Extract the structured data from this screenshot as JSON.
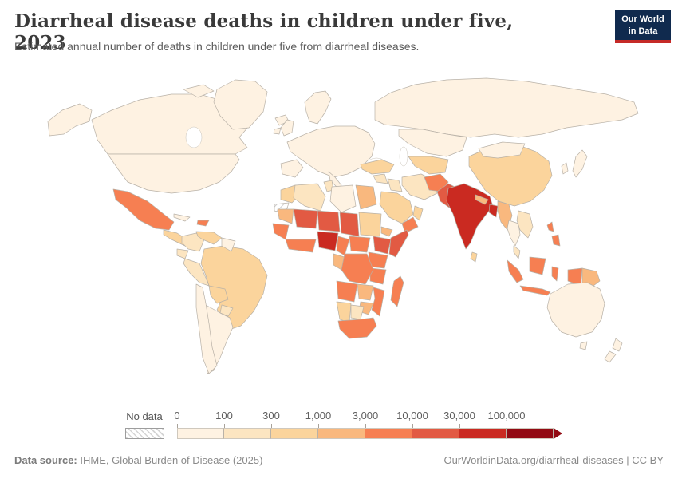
{
  "header": {
    "title": "Diarrheal disease deaths in children under five, 2023",
    "subtitle": "Estimated annual number of deaths in children under five from diarrheal diseases."
  },
  "logo": {
    "line1": "Our World",
    "line2": "in Data",
    "bg_color": "#102a4e",
    "accent_color": "#c52a28"
  },
  "chart_data": {
    "type": "choropleth",
    "title": "Diarrheal disease deaths in children under five, 2023",
    "unit": "estimated annual deaths in children under five",
    "legend": {
      "no_data_label": "No data",
      "tick_labels": [
        "0",
        "100",
        "300",
        "1,000",
        "3,000",
        "10,000",
        "30,000",
        "100,000"
      ],
      "bin_ranges": [
        "0–100",
        "100–300",
        "300–1,000",
        "1,000–3,000",
        "3,000–10,000",
        "10,000–30,000",
        "30,000–100,000",
        "100,000+"
      ],
      "bin_colors": [
        "#fef2e2",
        "#fce5c1",
        "#fbd49c",
        "#f9b87e",
        "#f67f52",
        "#e25a43",
        "#ca2a21",
        "#920a13"
      ],
      "no_data_pattern": "diagonal-hatch"
    },
    "regions": {
      "canada": 0,
      "united-states": 0,
      "greenland": 0,
      "iceland": 0,
      "mexico": 4,
      "central-america": 2,
      "cuba": 0,
      "hispaniola": 4,
      "colombia": 1,
      "venezuela": 2,
      "guyanas": 0,
      "ecuador": 1,
      "peru": 1,
      "brazil": 2,
      "bolivia": 2,
      "paraguay": 1,
      "chile": 0,
      "argentina": 0,
      "united-kingdom": 0,
      "ireland": 0,
      "scandinavia": 0,
      "europe-mainland": 0,
      "iberia": 0,
      "italy": 0,
      "russia": 0,
      "kazakhstan": 0,
      "central-asia": 2,
      "china": 2,
      "mongolia": 0,
      "japan": 0,
      "korea": 0,
      "turkey": 2,
      "levant": 1,
      "iraq": 1,
      "iran": 1,
      "saudi-arabia": 2,
      "yemen": 4,
      "oman": 2,
      "morocco": 2,
      "western-sahara": null,
      "algeria": 1,
      "tunisia": 1,
      "libya": 0,
      "egypt": 3,
      "mauritania": 3,
      "mali": 5,
      "niger": 5,
      "chad": 5,
      "sudan": 2,
      "eritrea": 3,
      "senegal-guinea": 4,
      "west-african-coast": 4,
      "nigeria": 6,
      "cameroon": 4,
      "central-african-republic": 4,
      "ethiopia": 5,
      "somalia": 5,
      "gabon-congo": 3,
      "dr-congo": 4,
      "uganda-kenya": 4,
      "tanzania": 4,
      "angola": 4,
      "zambia": 3,
      "mozambique": 4,
      "zimbabwe": 3,
      "namibia": 2,
      "botswana": 1,
      "south-africa": 4,
      "madagascar": 4,
      "afghanistan": 4,
      "pakistan": 5,
      "india": 6,
      "nepal": 3,
      "bangladesh": 6,
      "sri-lanka": 2,
      "myanmar": 3,
      "thailand": 0,
      "vietnam-laos": 1,
      "malay-peninsula": 1,
      "indonesia": 4,
      "philippines": 4,
      "papua-new-guinea": 3,
      "australia": 0,
      "new-zealand": 0
    }
  },
  "footer": {
    "source_label": "Data source:",
    "source_text": " IHME, Global Burden of Disease (2025)",
    "right_text": "OurWorldinData.org/diarrheal-diseases | CC BY"
  }
}
